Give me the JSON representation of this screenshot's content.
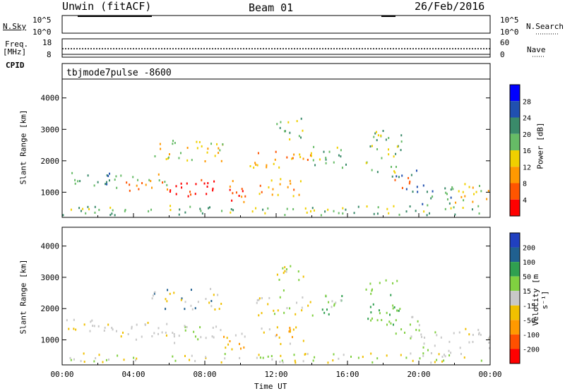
{
  "header": {
    "station": "Unwin (fitACF)",
    "beam": "Beam 01",
    "date": "26/Feb/2016"
  },
  "top_panels": {
    "nsky_label": "N.Sky",
    "nsearch_label": "N.Search",
    "nsky_ticks": [
      "10^5",
      "10^0"
    ],
    "nsearch_ticks": [
      "10^5",
      "10^0"
    ],
    "freq_label_1": "Freq.",
    "freq_label_2": "[MHz]",
    "freq_ticks": [
      "18",
      "8"
    ],
    "nave_label": "Nave",
    "nave_ticks": [
      "60",
      "0"
    ],
    "cpid_label": "CPID",
    "cpid_value": "tbjmode7pulse -8600"
  },
  "chart_data": [
    {
      "type": "heatmap",
      "name": "power",
      "ylabel": "Slant Range [km]",
      "y_ticks": [
        1000,
        2000,
        3000,
        4000
      ],
      "ylim": [
        200,
        4600
      ],
      "colorbar_label": "Power [dB]",
      "colorbar_ticks": [
        4,
        8,
        12,
        16,
        20,
        24,
        28
      ],
      "colorscale": [
        "#0000ff",
        "#2050b0",
        "#3a8a6a",
        "#66bb66",
        "#f0d000",
        "#ff9900",
        "#ff5500",
        "#ff0000"
      ]
    },
    {
      "type": "heatmap",
      "name": "velocity",
      "ylabel": "Slant Range [km]",
      "y_ticks": [
        1000,
        2000,
        3000,
        4000
      ],
      "ylim": [
        200,
        4600
      ],
      "colorbar_label": "Velocity [m s⁻¹]",
      "colorbar_ticks": [
        200,
        100,
        50,
        15,
        -15,
        -50,
        -100,
        -200
      ],
      "colorscale": [
        "#2040c0",
        "#206090",
        "#30a050",
        "#80d040",
        "#c8c8c8",
        "#f0c000",
        "#ff9900",
        "#ff5000",
        "#ff0000"
      ]
    }
  ],
  "x_axis": {
    "ticks": [
      "00:00",
      "04:00",
      "08:00",
      "12:00",
      "16:00",
      "20:00",
      "00:00"
    ],
    "label": "Time UT"
  }
}
